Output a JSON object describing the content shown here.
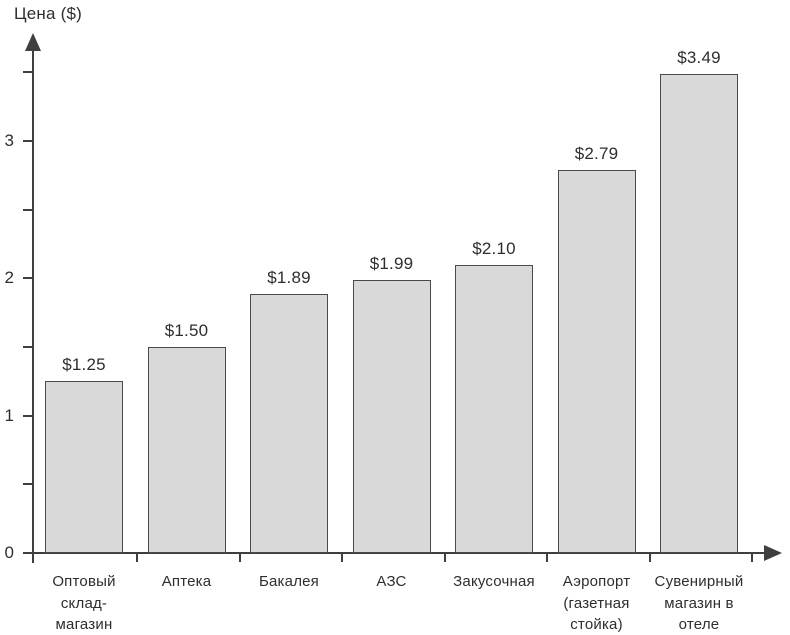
{
  "chart_data": {
    "type": "bar",
    "title": "Цена ($)",
    "ylabel": "Цена ($)",
    "xlabel": "",
    "categories": [
      "Оптовый\nсклад-\nмагазин",
      "Аптека",
      "Бакалея",
      "АЗС",
      "Закусочная",
      "Аэропорт\n(газетная\nстойка)",
      "Сувенирный\nмагазин в\nотеле"
    ],
    "values": [
      1.25,
      1.5,
      1.89,
      1.99,
      2.1,
      2.79,
      3.49
    ],
    "value_labels": [
      "$1.25",
      "$1.50",
      "$1.89",
      "$1.99",
      "$2.10",
      "$2.79",
      "$3.49"
    ],
    "y_axis": {
      "labeled_ticks": [
        0,
        1,
        2,
        3
      ],
      "minor_ticks": [
        0.5,
        1.5,
        2.5,
        3.5
      ],
      "ylim": [
        0,
        3.5
      ]
    },
    "grid": false,
    "legend": null,
    "colors": {
      "bar_fill": "#d9d9d9",
      "bar_border": "#4a4a4a",
      "axis": "#3f3f3f",
      "text": "#2e2e2e",
      "background": "#ffffff"
    }
  }
}
